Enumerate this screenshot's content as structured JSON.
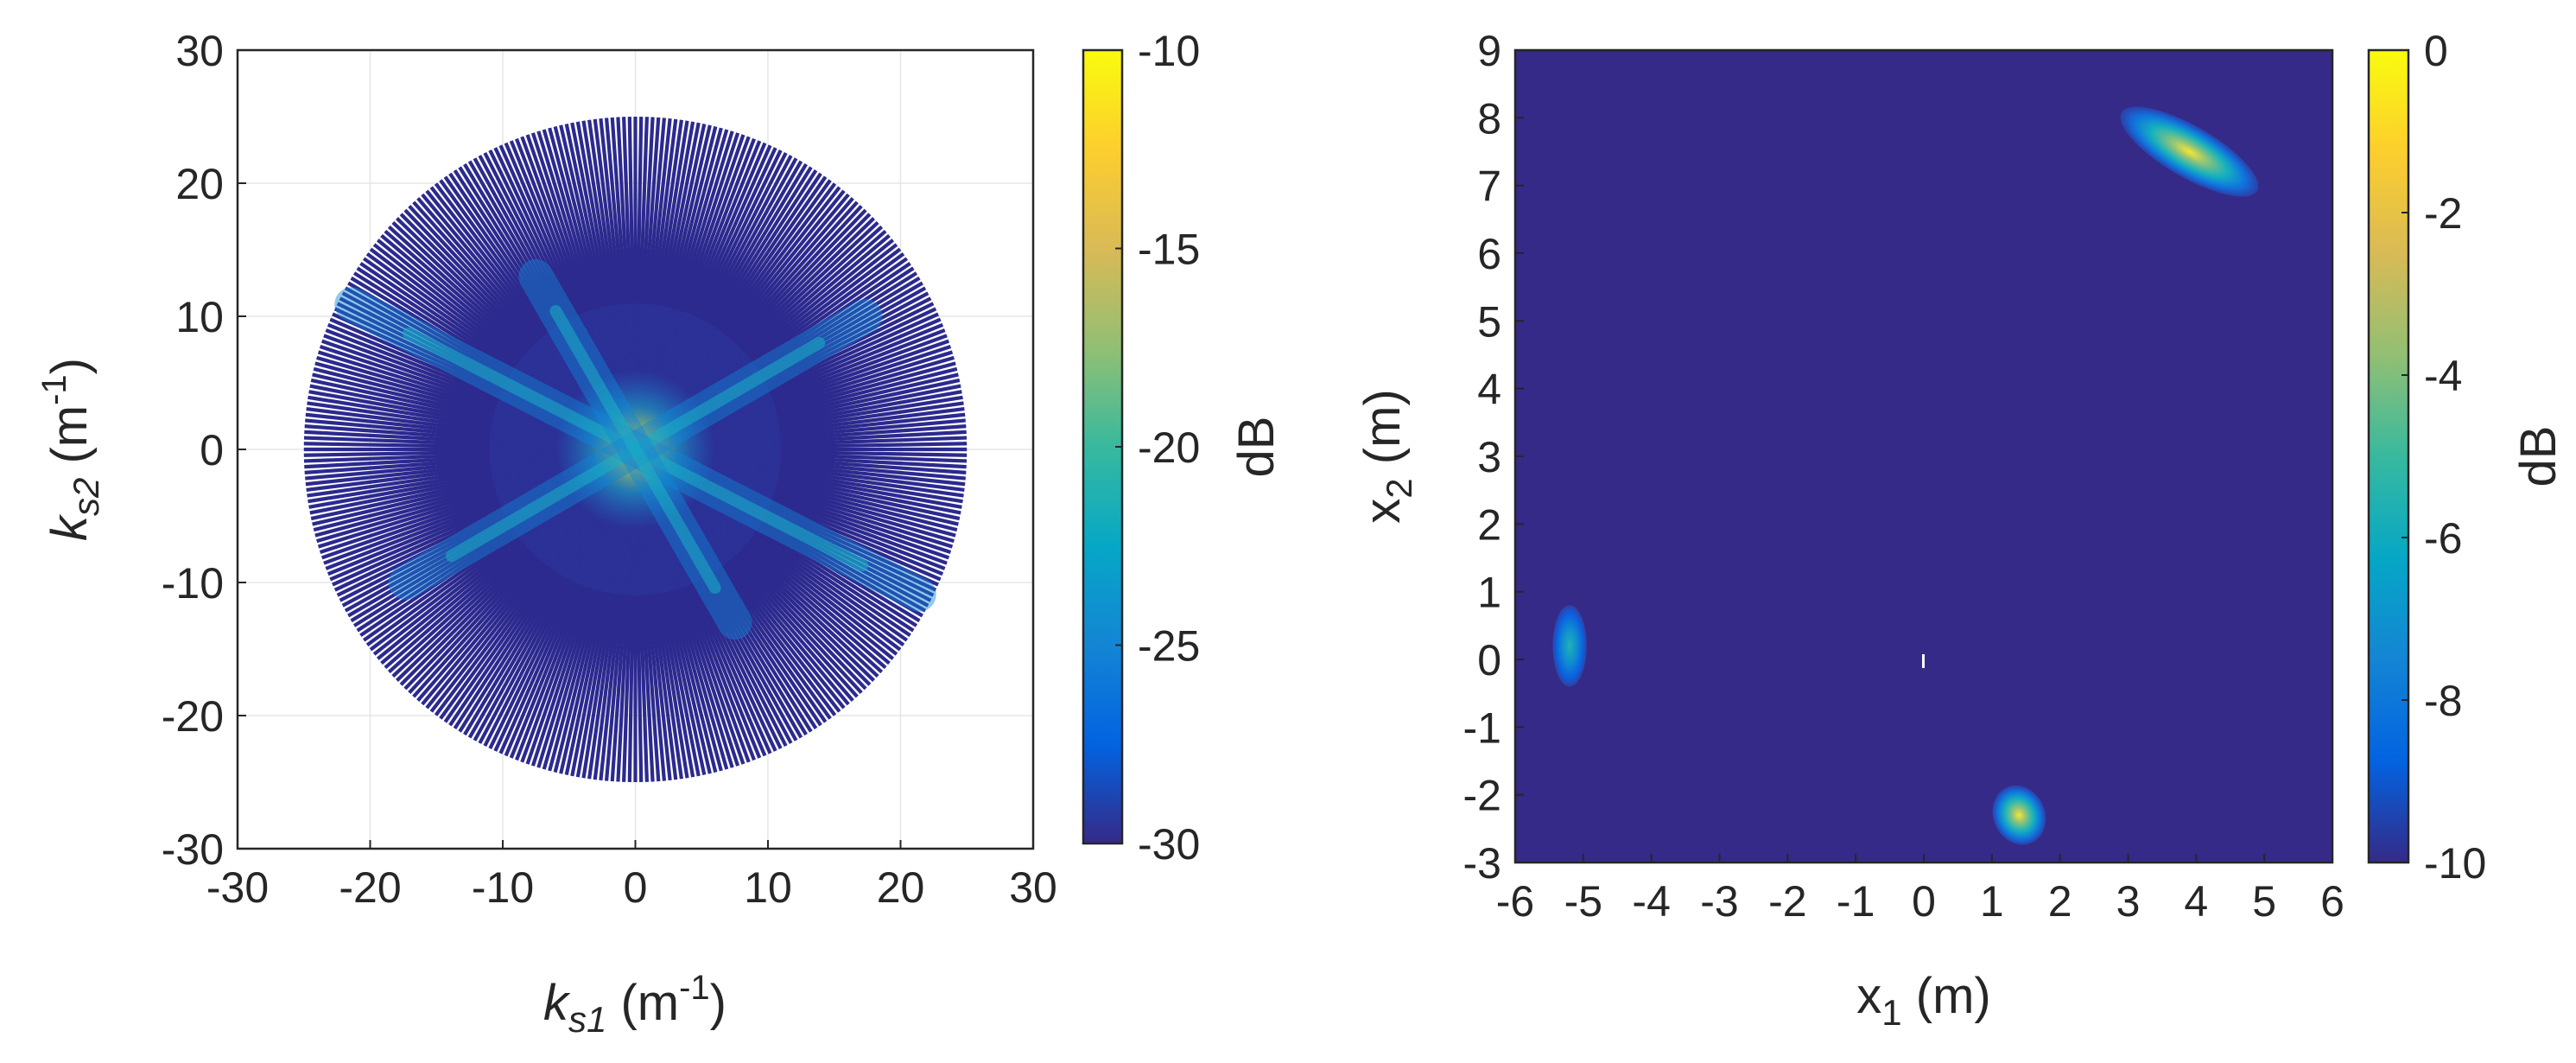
{
  "chart_data": [
    {
      "type": "heatmap",
      "xlabel": {
        "base": "k",
        "sub": "s1",
        "unit_open": " (m",
        "sup": "-1",
        "unit_close": ")"
      },
      "ylabel": {
        "base": "k",
        "sub": "s2",
        "unit_open": " (m",
        "sup": "-1",
        "unit_close": ")"
      },
      "xlim": [
        -30,
        30
      ],
      "ylim": [
        -30,
        30
      ],
      "xticks": [
        -30,
        -20,
        -10,
        0,
        10,
        20,
        30
      ],
      "yticks": [
        -30,
        -20,
        -10,
        0,
        10,
        20,
        30
      ],
      "xtick_labels": [
        "-30",
        "-20",
        "-10",
        "0",
        "10",
        "20",
        "30"
      ],
      "ytick_labels": [
        "-30",
        "-20",
        "-10",
        "0",
        "10",
        "20",
        "30"
      ],
      "grid": true,
      "radial_samples": {
        "radius": 25,
        "lines": 180,
        "background_db": -30
      },
      "highlights": [
        {
          "kind": "center-peak",
          "x": 0,
          "y": 0,
          "db": -14
        },
        {
          "kind": "streak",
          "angle_deg": -27,
          "extent": 24,
          "db": -23
        },
        {
          "kind": "streak",
          "angle_deg": 30,
          "extent": 20,
          "db": -24
        },
        {
          "kind": "streak",
          "angle_deg": -60,
          "extent": 15,
          "db": -26
        }
      ],
      "colorbar": {
        "label": "dB",
        "min": -30,
        "max": -10,
        "ticks": [
          -30,
          -25,
          -20,
          -15,
          -10
        ],
        "tick_labels": [
          "-30",
          "-25",
          "-20",
          "-15",
          "-10"
        ]
      }
    },
    {
      "type": "heatmap",
      "xlabel": {
        "base": "x",
        "sub": "1",
        "unit": " (m)"
      },
      "ylabel": {
        "base": "x",
        "sub": "2",
        "unit": " (m)"
      },
      "xlim": [
        -6,
        6
      ],
      "ylim": [
        -3,
        9
      ],
      "xticks": [
        -6,
        -5,
        -4,
        -3,
        -2,
        -1,
        0,
        1,
        2,
        3,
        4,
        5,
        6
      ],
      "yticks": [
        -3,
        -2,
        -1,
        0,
        1,
        2,
        3,
        4,
        5,
        6,
        7,
        8,
        9
      ],
      "xtick_labels": [
        "-6",
        "-5",
        "-4",
        "-3",
        "-2",
        "-1",
        "0",
        "1",
        "2",
        "3",
        "4",
        "5",
        "6"
      ],
      "ytick_labels": [
        "-3",
        "-2",
        "-1",
        "0",
        "1",
        "2",
        "3",
        "4",
        "5",
        "6",
        "7",
        "8",
        "9"
      ],
      "background_db": -10,
      "blobs": [
        {
          "cx": 3.9,
          "cy": 7.5,
          "rx": 1.15,
          "ry": 0.38,
          "angle_deg": -30,
          "peak_db": -0.5
        },
        {
          "cx": -5.2,
          "cy": 0.2,
          "rx": 0.25,
          "ry": 0.6,
          "angle_deg": 0,
          "peak_db": -6
        },
        {
          "cx": 1.4,
          "cy": -2.3,
          "rx": 0.38,
          "ry": 0.45,
          "angle_deg": 25,
          "peak_db": -1
        }
      ],
      "colorbar": {
        "label": "dB",
        "min": -10,
        "max": 0,
        "ticks": [
          -10,
          -8,
          -6,
          -4,
          -2,
          0
        ],
        "tick_labels": [
          "-10",
          "-8",
          "-6",
          "-4",
          "-2",
          "0"
        ]
      }
    }
  ]
}
